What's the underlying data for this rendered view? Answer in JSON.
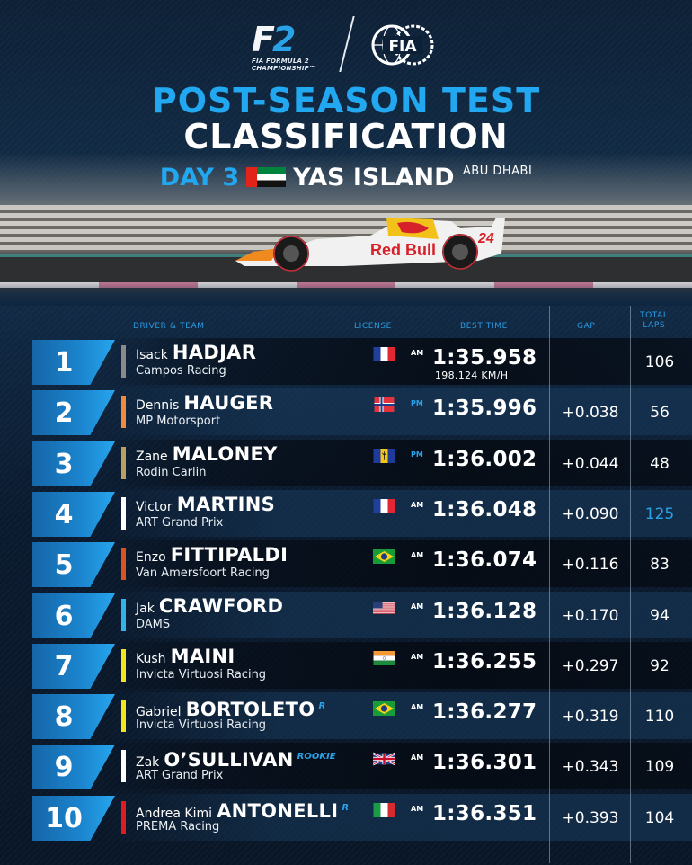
{
  "header": {
    "f2_logo": {
      "mark_f": "F",
      "mark_2": "2",
      "line1": "FIA FORMULA 2",
      "line2": "CHAMPIONSHIP™"
    },
    "fia_logo": "FIA",
    "title_line1": "POST-SEASON TEST",
    "title_line2": "CLASSIFICATION",
    "day": "DAY 3",
    "venue": "YAS ISLAND",
    "city": "ABU DHABI",
    "flag_icon": "uae-flag"
  },
  "table": {
    "columns": {
      "driver_team": "DRIVER & TEAM",
      "license": "LICENSE",
      "best_time": "BEST TIME",
      "gap": "GAP",
      "total_laps_1": "TOTAL",
      "total_laps_2": "LAPS"
    },
    "rows": [
      {
        "pos": "1",
        "first": "Isack",
        "last": "HADJAR",
        "tag": "",
        "team": "Campos Racing",
        "team_color": "#8a8a8a",
        "license": "France",
        "session": "AM",
        "time": "1:35.958",
        "speed": "198.124 KM/H",
        "gap": "",
        "laps": "106"
      },
      {
        "pos": "2",
        "first": "Dennis",
        "last": "HAUGER",
        "tag": "",
        "team": "MP Motorsport",
        "team_color": "#f08a3c",
        "license": "Norway",
        "session": "PM",
        "time": "1:35.996",
        "speed": "",
        "gap": "+0.038",
        "laps": "56"
      },
      {
        "pos": "3",
        "first": "Zane",
        "last": "MALONEY",
        "tag": "",
        "team": "Rodin Carlin",
        "team_color": "#b8a060",
        "license": "Barbados",
        "session": "PM",
        "time": "1:36.002",
        "speed": "",
        "gap": "+0.044",
        "laps": "48"
      },
      {
        "pos": "4",
        "first": "Victor",
        "last": "MARTINS",
        "tag": "",
        "team": "ART Grand Prix",
        "team_color": "#ffffff",
        "license": "France",
        "session": "AM",
        "time": "1:36.048",
        "speed": "",
        "gap": "+0.090",
        "laps": "125"
      },
      {
        "pos": "5",
        "first": "Enzo",
        "last": "FITTIPALDI",
        "tag": "",
        "team": "Van Amersfoort Racing",
        "team_color": "#d9541e",
        "license": "Brazil",
        "session": "AM",
        "time": "1:36.074",
        "speed": "",
        "gap": "+0.116",
        "laps": "83"
      },
      {
        "pos": "6",
        "first": "Jak",
        "last": "CRAWFORD",
        "tag": "",
        "team": "DAMS",
        "team_color": "#2fb4ea",
        "license": "USA",
        "session": "AM",
        "time": "1:36.128",
        "speed": "",
        "gap": "+0.170",
        "laps": "94"
      },
      {
        "pos": "7",
        "first": "Kush",
        "last": "MAINI",
        "tag": "",
        "team": "Invicta Virtuosi Racing",
        "team_color": "#f1e61b",
        "license": "India",
        "session": "AM",
        "time": "1:36.255",
        "speed": "",
        "gap": "+0.297",
        "laps": "92"
      },
      {
        "pos": "8",
        "first": "Gabriel",
        "last": "BORTOLETO",
        "tag": "R",
        "team": "Invicta Virtuosi Racing",
        "team_color": "#f1e61b",
        "license": "Brazil",
        "session": "AM",
        "time": "1:36.277",
        "speed": "",
        "gap": "+0.319",
        "laps": "110"
      },
      {
        "pos": "9",
        "first": "Zak",
        "last": "O’SULLIVAN",
        "tag": "ROOKIE",
        "team": "ART Grand Prix",
        "team_color": "#ffffff",
        "license": "United Kingdom",
        "session": "AM",
        "time": "1:36.301",
        "speed": "",
        "gap": "+0.343",
        "laps": "109"
      },
      {
        "pos": "10",
        "first": "Andrea Kimi",
        "last": "ANTONELLI",
        "tag": "R",
        "team": "PREMA Racing",
        "team_color": "#e21a22",
        "license": "Italy",
        "session": "AM",
        "time": "1:36.351",
        "speed": "",
        "gap": "+0.393",
        "laps": "104"
      }
    ]
  },
  "colors": {
    "accent_blue": "#22a8f0",
    "background": "#0c1a2c",
    "highlight_laps": "#2aa2e8"
  },
  "hero": {
    "car_livery": "Red Bull",
    "car_number": "24"
  }
}
